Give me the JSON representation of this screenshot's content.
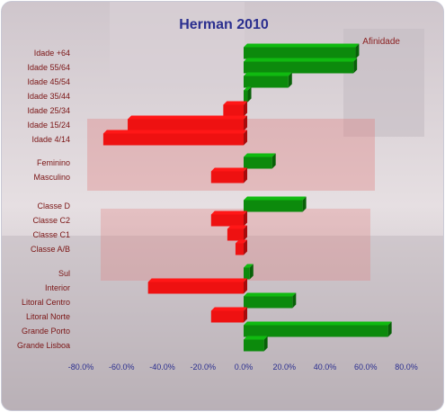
{
  "chart_data": {
    "type": "bar",
    "orientation": "horizontal",
    "title": "Herman 2010",
    "series_label": "Afinidade",
    "xlim": [
      -80,
      80
    ],
    "ticks": [
      -80,
      -60,
      -40,
      -20,
      0,
      20,
      40,
      60,
      80
    ],
    "tick_format": "percent_1dp",
    "colors": {
      "positive": "#0c8a0c",
      "negative": "#ee1111",
      "title": "#2b2f8f"
    },
    "groups": [
      {
        "items": [
          {
            "category": "Idade +64",
            "value": 55
          },
          {
            "category": "Idade 55/64",
            "value": 54
          },
          {
            "category": "Idade 45/54",
            "value": 22
          },
          {
            "category": "Idade 35/44",
            "value": 2
          },
          {
            "category": "Idade 25/34",
            "value": -10
          },
          {
            "category": "Idade 15/24",
            "value": -57
          },
          {
            "category": "Idade 4/14",
            "value": -69
          }
        ]
      },
      {
        "items": [
          {
            "category": "Feminino",
            "value": 14
          },
          {
            "category": "Masculino",
            "value": -16
          }
        ]
      },
      {
        "items": [
          {
            "category": "Classe D",
            "value": 29
          },
          {
            "category": "Classe C2",
            "value": -16
          },
          {
            "category": "Classe C1",
            "value": -8
          },
          {
            "category": "Classe A/B",
            "value": -4
          }
        ]
      },
      {
        "items": [
          {
            "category": "Sul",
            "value": 3
          },
          {
            "category": "Interior",
            "value": -47
          },
          {
            "category": "Litoral Centro",
            "value": 24
          },
          {
            "category": "Litoral Norte",
            "value": -16
          },
          {
            "category": "Grande Porto",
            "value": 71
          },
          {
            "category": "Grande Lisboa",
            "value": 10
          }
        ]
      }
    ]
  }
}
